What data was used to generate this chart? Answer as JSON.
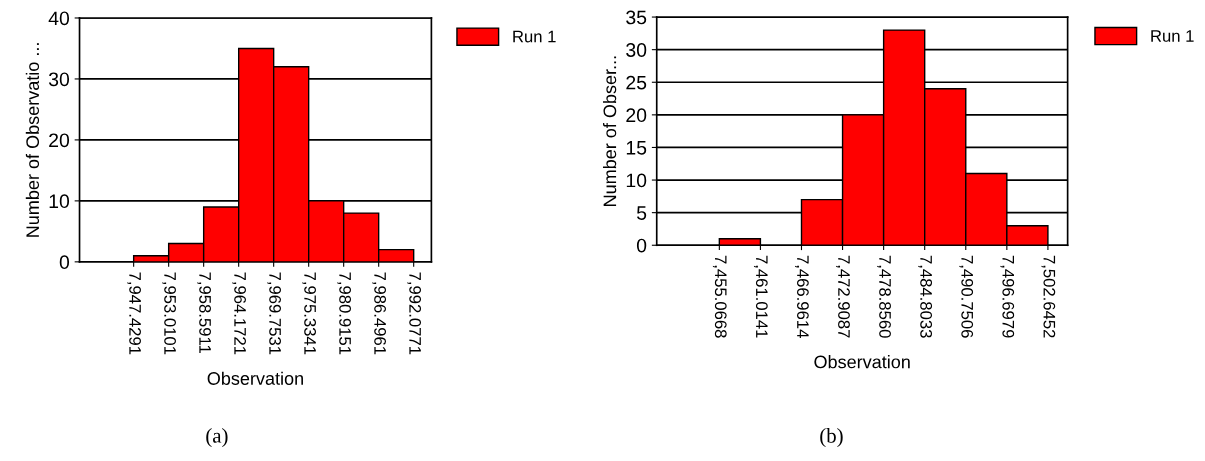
{
  "chart_data": [
    {
      "type": "histogram",
      "xlabel": "Observation",
      "ylabel": "Number of Observatio ...",
      "bins": [
        7947.4291,
        7953.0101,
        7958.5911,
        7964.1721,
        7969.7531,
        7975.3341,
        7980.9151,
        7986.4961,
        7992.0771
      ],
      "series": [
        {
          "name": "Run 1",
          "color": "#ff0000",
          "values": [
            1,
            3,
            9,
            35,
            32,
            10,
            8,
            2
          ]
        }
      ],
      "xlim": [
        7938.8,
        7994.9
      ],
      "xticks": [
        {
          "value": 7947.4291,
          "label": "7,947.4291"
        },
        {
          "value": 7953.0101,
          "label": "7,953.0101"
        },
        {
          "value": 7958.5911,
          "label": "7,958.5911"
        },
        {
          "value": 7964.1721,
          "label": "7,964.1721"
        },
        {
          "value": 7969.7531,
          "label": "7,969.7531"
        },
        {
          "value": 7975.3341,
          "label": "7,975.3341"
        },
        {
          "value": 7980.9151,
          "label": "7,980.9151"
        },
        {
          "value": 7986.4961,
          "label": "7,986.4961"
        },
        {
          "value": 7992.0771,
          "label": "7,992.0771"
        }
      ],
      "ylim": [
        0,
        40
      ],
      "yticks": [
        0,
        10,
        20,
        30,
        40
      ],
      "grid": "y",
      "legend": "top right",
      "annotations": [
        "(a)"
      ]
    },
    {
      "type": "histogram",
      "xlabel": "Observation",
      "ylabel": "Number of Obser...",
      "bins": [
        7455.0668,
        7461.0141,
        7466.9614,
        7472.9087,
        7478.856,
        7484.8033,
        7490.7506,
        7496.6979,
        7502.6452
      ],
      "series": [
        {
          "name": "Run 1",
          "color": "#ff0000",
          "values": [
            1,
            0,
            7,
            20,
            33,
            24,
            11,
            3
          ]
        }
      ],
      "xlim": [
        7446.0,
        7505.5
      ],
      "xticks": [
        {
          "value": 7455.0668,
          "label": "7,455.0668"
        },
        {
          "value": 7461.0141,
          "label": "7,461.0141"
        },
        {
          "value": 7466.9614,
          "label": "7,466.9614"
        },
        {
          "value": 7472.9087,
          "label": "7,472.9087"
        },
        {
          "value": 7478.856,
          "label": "7,478.8560"
        },
        {
          "value": 7484.8033,
          "label": "7,484.8033"
        },
        {
          "value": 7490.7506,
          "label": "7,490.7506"
        },
        {
          "value": 7496.6979,
          "label": "7,496.6979"
        },
        {
          "value": 7502.6452,
          "label": "7,502.6452"
        }
      ],
      "ylim": [
        0,
        35
      ],
      "yticks": [
        0,
        5,
        10,
        15,
        20,
        25,
        30,
        35
      ],
      "grid": "y",
      "legend": "top right",
      "annotations": [
        "(b)"
      ]
    }
  ]
}
